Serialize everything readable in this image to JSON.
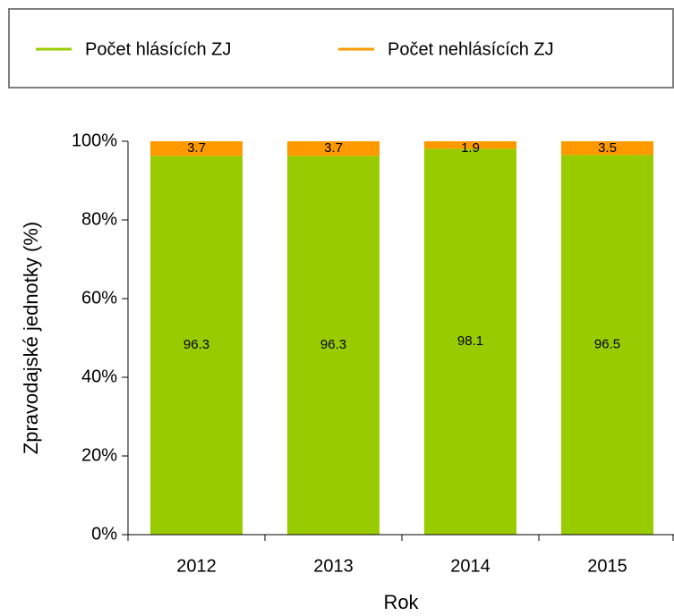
{
  "chart_data": {
    "type": "stacked_bar",
    "categories": [
      "2012",
      "2013",
      "2014",
      "2015"
    ],
    "series": [
      {
        "name": "Počet hlásících ZJ",
        "color": "#99cc00",
        "values": [
          96.3,
          96.3,
          98.1,
          96.5
        ]
      },
      {
        "name": "Počet nehlásících ZJ",
        "color": "#ff9900",
        "values": [
          3.7,
          3.7,
          1.9,
          3.5
        ]
      }
    ],
    "ylim": [
      0,
      100
    ],
    "yticks": [
      {
        "value": 0,
        "label": "0%"
      },
      {
        "value": 20,
        "label": "20%"
      },
      {
        "value": 40,
        "label": "40%"
      },
      {
        "value": 60,
        "label": "60%"
      },
      {
        "value": 80,
        "label": "80%"
      },
      {
        "value": 100,
        "label": "100%"
      }
    ],
    "x_label": "Rok",
    "y_label": "Zpravodajské jednotky (%)",
    "legend": "top"
  }
}
